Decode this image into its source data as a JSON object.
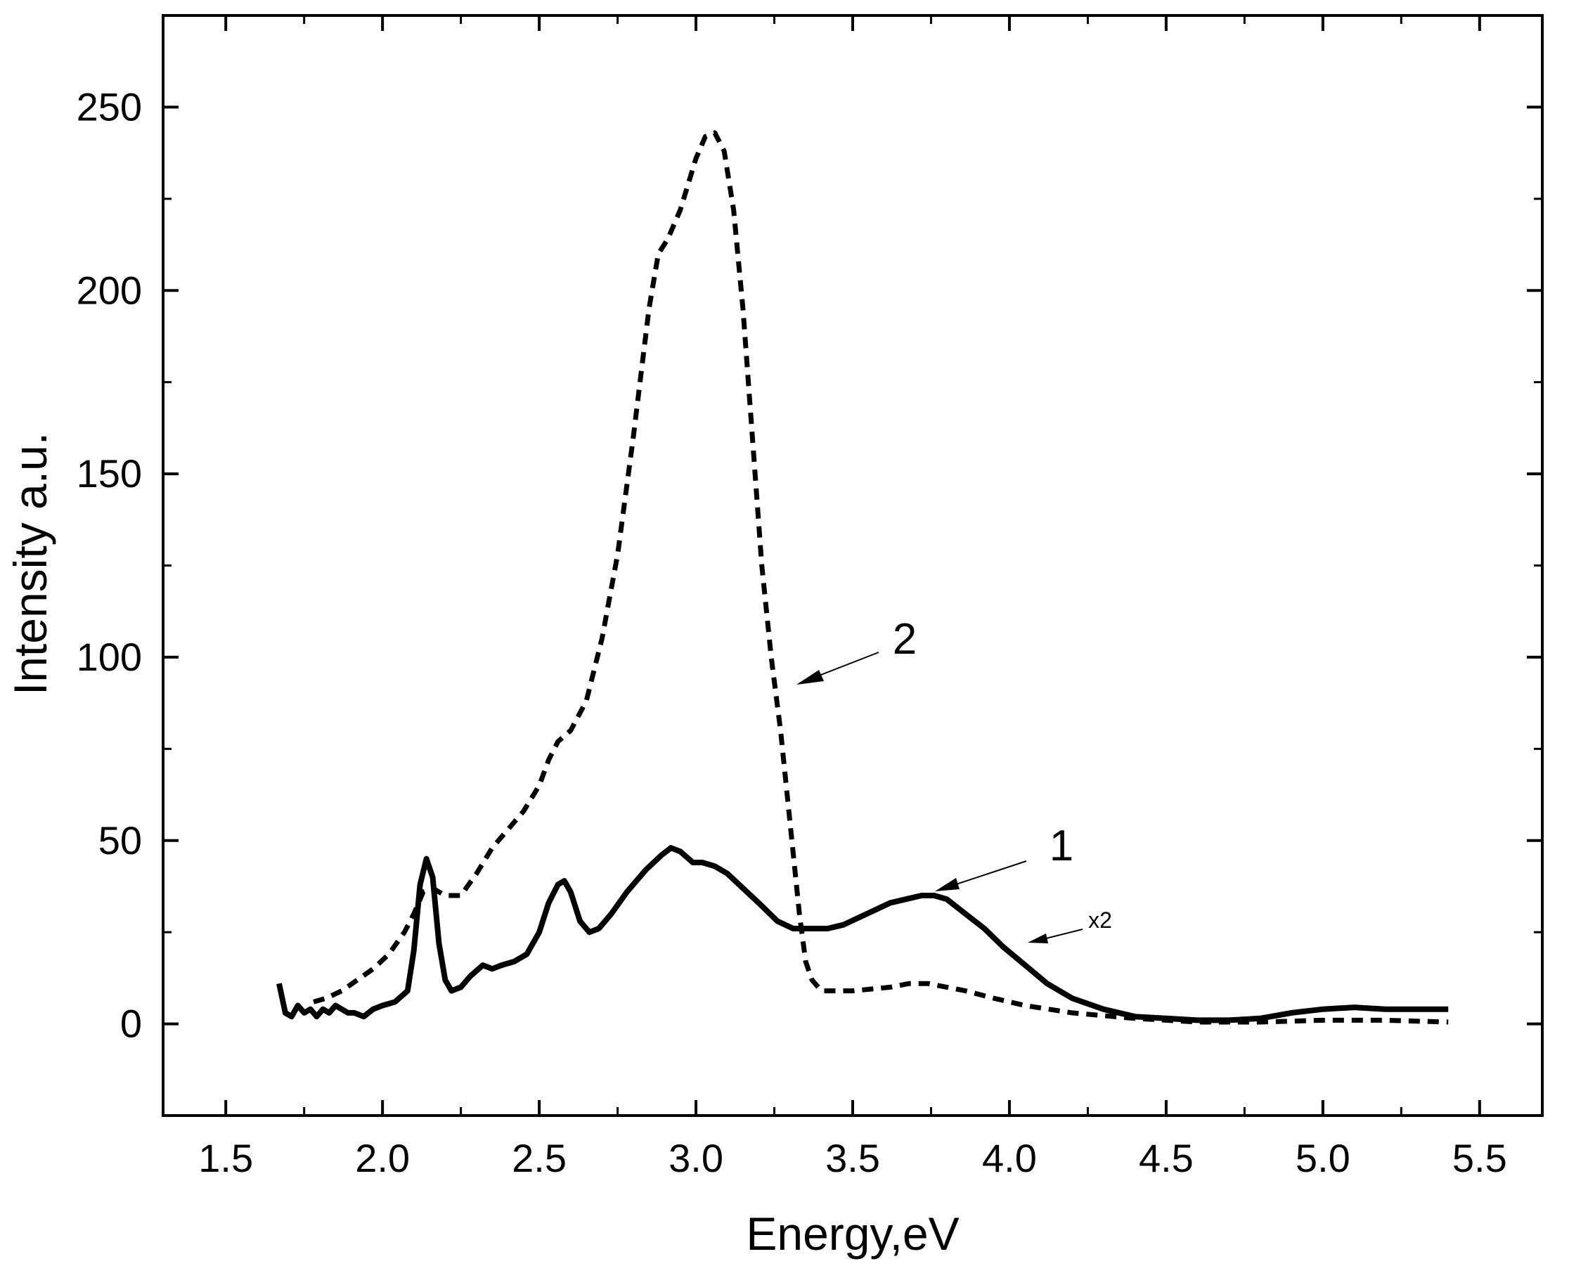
{
  "chart_data": {
    "type": "line",
    "title": "",
    "xlabel": "Energy,eV",
    "ylabel": "Intensity a.u.",
    "xlim": [
      1.3,
      5.7
    ],
    "ylim": [
      -25,
      275
    ],
    "grid": false,
    "x_ticks": [
      1.5,
      2.0,
      2.5,
      3.0,
      3.5,
      4.0,
      4.5,
      5.0,
      5.5
    ],
    "x_tick_labels": [
      "1.5",
      "2.0",
      "2.5",
      "3.0",
      "3.5",
      "4.0",
      "4.5",
      "5.0",
      "5.5"
    ],
    "y_ticks": [
      0,
      50,
      100,
      150,
      200,
      250
    ],
    "y_tick_labels": [
      "0",
      "50",
      "100",
      "150",
      "200",
      "250"
    ],
    "series": [
      {
        "name": "1",
        "style": "solid",
        "color": "#000000",
        "x": [
          1.67,
          1.69,
          1.71,
          1.73,
          1.75,
          1.77,
          1.79,
          1.81,
          1.83,
          1.85,
          1.87,
          1.89,
          1.91,
          1.94,
          1.97,
          2.0,
          2.04,
          2.08,
          2.1,
          2.12,
          2.14,
          2.16,
          2.18,
          2.2,
          2.22,
          2.25,
          2.28,
          2.32,
          2.35,
          2.38,
          2.42,
          2.46,
          2.5,
          2.53,
          2.56,
          2.58,
          2.6,
          2.63,
          2.66,
          2.69,
          2.73,
          2.78,
          2.84,
          2.89,
          2.92,
          2.95,
          2.99,
          3.02,
          3.06,
          3.1,
          3.15,
          3.2,
          3.26,
          3.31,
          3.34,
          3.38,
          3.42,
          3.47,
          3.52,
          3.57,
          3.62,
          3.67,
          3.72,
          3.76,
          3.8,
          3.86,
          3.92,
          3.98,
          4.05,
          4.12,
          4.2,
          4.3,
          4.4,
          4.5,
          4.6,
          4.7,
          4.8,
          4.9,
          5.0,
          5.1,
          5.2,
          5.3,
          5.4
        ],
        "y": [
          11,
          3,
          2,
          5,
          3,
          4,
          2,
          4,
          3,
          5,
          4,
          3,
          3,
          2,
          4,
          5,
          6,
          9,
          20,
          38,
          45,
          40,
          22,
          12,
          9,
          10,
          13,
          16,
          15,
          16,
          17,
          19,
          25,
          33,
          38,
          39,
          36,
          28,
          25,
          26,
          30,
          36,
          42,
          46,
          48,
          47,
          44,
          44,
          43,
          41,
          37,
          33,
          28,
          26,
          26,
          26,
          26,
          27,
          29,
          31,
          33,
          34,
          35,
          35,
          34,
          30,
          26,
          21,
          16,
          11,
          7,
          4,
          2,
          1.5,
          1,
          1,
          1.5,
          3,
          4,
          4.5,
          4,
          4,
          4
        ]
      },
      {
        "name": "2",
        "style": "dashed",
        "color": "#000000",
        "x": [
          1.78,
          1.82,
          1.87,
          1.92,
          1.97,
          2.02,
          2.07,
          2.1,
          2.13,
          2.16,
          2.2,
          2.25,
          2.3,
          2.35,
          2.4,
          2.45,
          2.5,
          2.53,
          2.56,
          2.6,
          2.65,
          2.7,
          2.75,
          2.8,
          2.85,
          2.88,
          2.91,
          2.95,
          3.0,
          3.03,
          3.06,
          3.09,
          3.12,
          3.15,
          3.18,
          3.21,
          3.24,
          3.27,
          3.3,
          3.33,
          3.35,
          3.37,
          3.4,
          3.44,
          3.5,
          3.56,
          3.62,
          3.68,
          3.74,
          3.8,
          3.86,
          3.95,
          4.05,
          4.2,
          4.4,
          4.6,
          4.8,
          5.0,
          5.2,
          5.4
        ],
        "y": [
          6,
          7,
          9,
          12,
          15,
          19,
          25,
          30,
          36,
          37,
          35,
          35,
          41,
          48,
          53,
          58,
          65,
          72,
          77,
          80,
          88,
          105,
          128,
          160,
          195,
          210,
          214,
          222,
          236,
          242,
          243,
          238,
          222,
          195,
          160,
          125,
          100,
          80,
          55,
          30,
          17,
          12,
          9,
          9,
          9,
          9.5,
          10,
          11,
          11,
          10,
          9,
          7,
          5,
          3,
          1.5,
          0.5,
          0.5,
          1,
          1,
          0.5
        ]
      }
    ],
    "annotations": [
      {
        "text": "2",
        "points_to": "series-2",
        "at": [
          3.27,
          92
        ]
      },
      {
        "text": "1",
        "points_to": "series-1",
        "at": [
          3.65,
          36
        ]
      },
      {
        "text": "x2",
        "points_to": "series-1",
        "at": [
          3.98,
          20
        ]
      }
    ]
  }
}
